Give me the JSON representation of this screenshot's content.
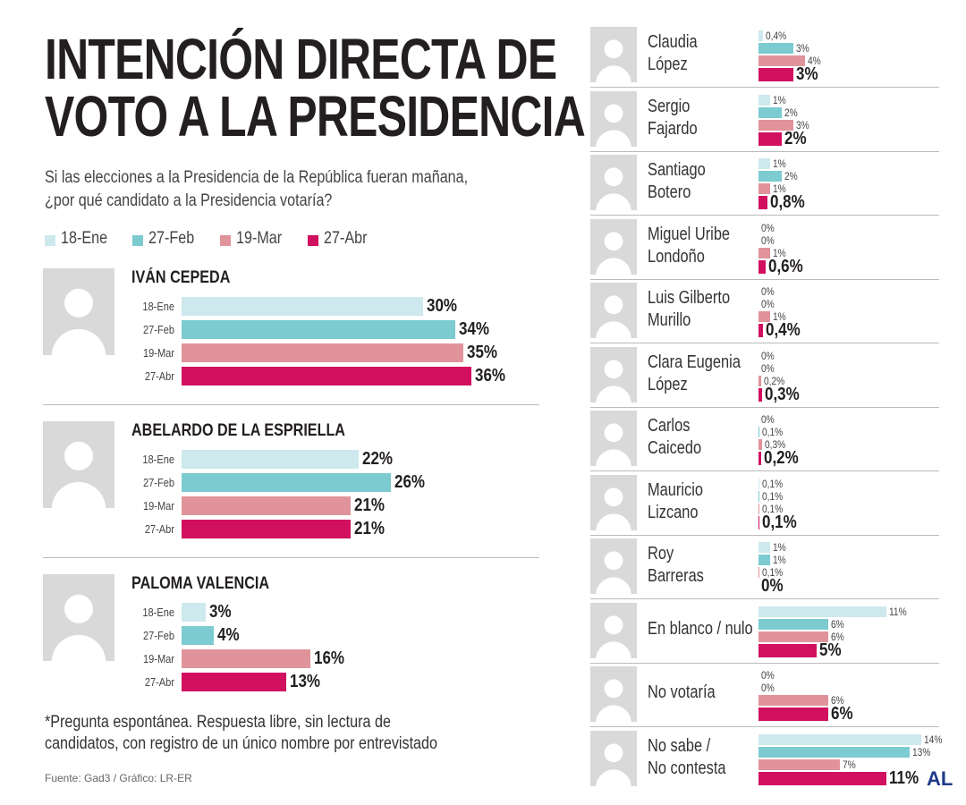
{
  "chart_data": {
    "type": "bar",
    "title": "INTENCIÓN DIRECTA DE\nVOTO A LA PRESIDENCIA",
    "subtitle": "Si las elecciones a la Presidencia de la República fueran mañana,\n¿por qué candidato a la Presidencia votaría?",
    "note": "*Pregunta espontánea. Respuesta libre, sin lectura de\ncandidatos, con registro de un único nombre por entrevistado",
    "source": "Fuente: Gad3 / Gráfico: LR-ER",
    "logo": "AL",
    "categories": [
      "IVÁN CEPEDA",
      "ABELARDO DE LA ESPRIELLA",
      "PALOMA VALENCIA",
      "Claudia\nLópez",
      "Sergio\nFajardo",
      "Santiago\nBotero",
      "Miguel Uribe\nLondoño",
      "Luis Gilberto\nMurillo",
      "Clara Eugenia\nLópez",
      "Carlos\nCaicedo",
      "Mauricio\nLizcano",
      "Roy\nBarreras",
      "En blanco / nulo",
      "No votaría",
      "No sabe /\nNo contesta"
    ],
    "series": [
      {
        "name": "18-Ene",
        "color": "#cde9ed",
        "values": [
          30,
          22,
          3,
          0.4,
          1,
          1,
          0,
          0,
          0,
          0,
          0.1,
          1,
          11,
          0,
          14
        ],
        "value_labels": [
          "30%",
          "22%",
          "3%",
          "0,4%",
          "1%",
          "1%",
          "0%",
          "0%",
          "0%",
          "0%",
          "0,1%",
          "1%",
          "11%",
          "0%",
          "14%"
        ]
      },
      {
        "name": "27-Feb",
        "color": "#7ccbd1",
        "values": [
          34,
          26,
          4,
          3,
          2,
          2,
          0,
          0,
          0,
          0.1,
          0.1,
          1,
          6,
          0,
          13
        ],
        "value_labels": [
          "34%",
          "26%",
          "4%",
          "3%",
          "2%",
          "2%",
          "0%",
          "0%",
          "0%",
          "0,1%",
          "0,1%",
          "1%",
          "6%",
          "0%",
          "13%"
        ]
      },
      {
        "name": "19-Mar",
        "color": "#e0939a",
        "values": [
          35,
          21,
          16,
          4,
          3,
          1,
          1,
          1,
          0.2,
          0.3,
          0.1,
          0.1,
          6,
          6,
          7
        ],
        "value_labels": [
          "35%",
          "21%",
          "16%",
          "4%",
          "3%",
          "1%",
          "1%",
          "1%",
          "0,2%",
          "0,3%",
          "0,1%",
          "0,1%",
          "6%",
          "6%",
          "7%"
        ]
      },
      {
        "name": "27-Abr",
        "color": "#d1105f",
        "values": [
          36,
          21,
          13,
          3,
          2,
          0.8,
          0.6,
          0.4,
          0.3,
          0.2,
          0.1,
          0,
          5,
          6,
          11
        ],
        "value_labels": [
          "36%",
          "21%",
          "13%",
          "3%",
          "2%",
          "0,8%",
          "0,6%",
          "0,4%",
          "0,3%",
          "0,2%",
          "0,1%",
          "0%",
          "5%",
          "6%",
          "11%"
        ]
      }
    ]
  }
}
